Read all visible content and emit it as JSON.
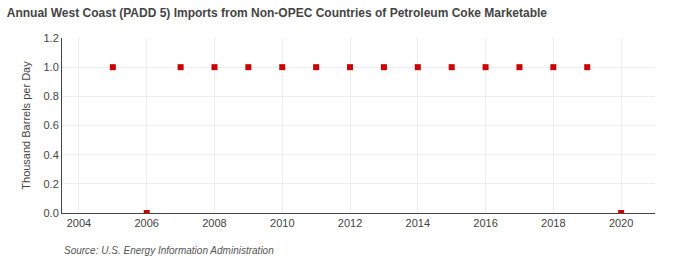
{
  "chart_data": {
    "type": "scatter",
    "title": "Annual West Coast (PADD 5) Imports from Non-OPEC Countries of Petroleum Coke Marketable",
    "ylabel": "Thousand Barrels per Day",
    "source": "Source: U.S. Energy Information Administration",
    "x": [
      2005,
      2006,
      2007,
      2008,
      2009,
      2010,
      2011,
      2012,
      2013,
      2014,
      2015,
      2016,
      2017,
      2018,
      2019,
      2020
    ],
    "values": [
      1.0,
      0.0,
      1.0,
      1.0,
      1.0,
      1.0,
      1.0,
      1.0,
      1.0,
      1.0,
      1.0,
      1.0,
      1.0,
      1.0,
      1.0,
      0.0
    ],
    "color": "#cc0000",
    "marker": "square",
    "xlim": [
      2003.5,
      2021.0
    ],
    "xticks": [
      2004,
      2006,
      2008,
      2010,
      2012,
      2014,
      2016,
      2018,
      2020
    ],
    "ylim": [
      0.0,
      1.2
    ],
    "yticks": [
      {
        "value": 0.0,
        "label": "0.0"
      },
      0.2,
      0.4,
      0.6,
      0.8,
      {
        "value": 1.0,
        "label": "1.0"
      },
      1.2
    ],
    "grid": true
  }
}
